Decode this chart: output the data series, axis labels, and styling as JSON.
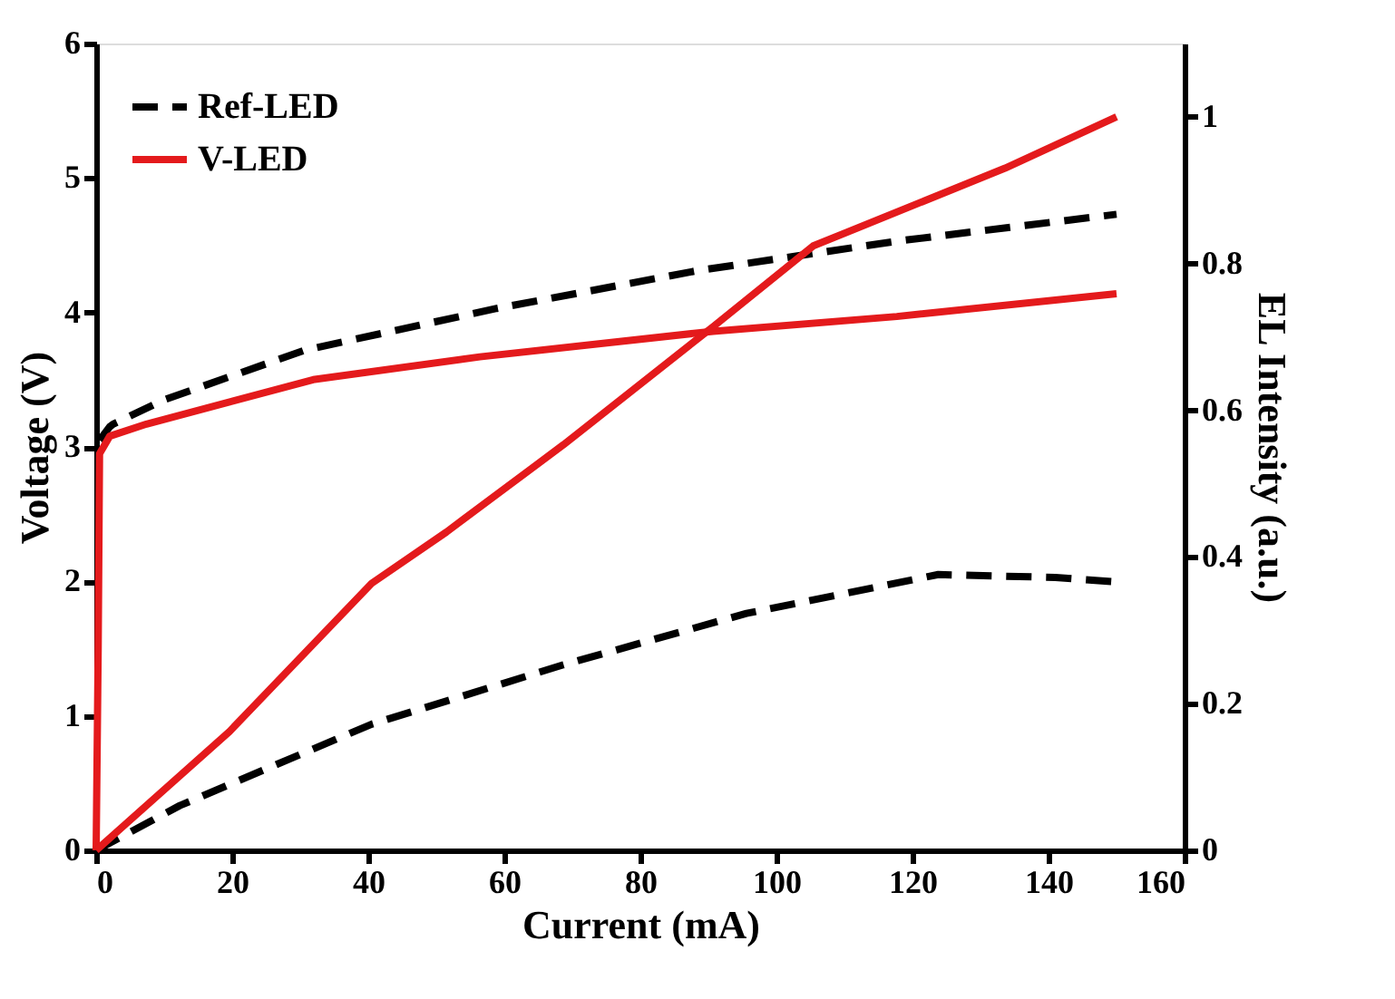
{
  "chart_data": {
    "type": "line",
    "xlabel": "Current (mA)",
    "ylabel": "Voltage (V)",
    "y2label": "EL Intensity (a.u.)",
    "xlim": [
      0,
      160
    ],
    "xticks": [
      0,
      20,
      40,
      60,
      80,
      100,
      120,
      140,
      160
    ],
    "ylim": [
      0,
      6
    ],
    "yticks": [
      0,
      1,
      2,
      3,
      4,
      5,
      6
    ],
    "y2lim": [
      0,
      1.1
    ],
    "y2ticks": [
      0,
      0.2,
      0.4,
      0.6,
      0.8,
      1
    ],
    "grid": false,
    "legend": "top left",
    "marker": "none",
    "series": [
      {
        "name": "Ref-LED",
        "color": "#000000",
        "line_style": "dashed",
        "x": [
          0.5,
          2,
          2.5,
          10,
          30.7,
          58.9,
          88.3,
          117.7,
          148.4,
          150
        ],
        "values": [
          3.05,
          3.15,
          3.17,
          3.35,
          3.72,
          4.03,
          4.31,
          4.53,
          4.72,
          4.73
        ]
      },
      {
        "name": "V-LED",
        "color": "#e41a1c",
        "line_style": "solid",
        "x": [
          0,
          0.3,
          0.5,
          2,
          7.4,
          31.9,
          56.4,
          90.7,
          117.7,
          150
        ],
        "values": [
          0,
          1.5,
          2.95,
          3.08,
          3.17,
          3.5,
          3.67,
          3.86,
          3.97,
          4.14
        ]
      },
      {
        "color": "#000000",
        "line_style": "dashed",
        "axis": "y2",
        "x": [
          0,
          12.3,
          40.5,
          68.7,
          95.6,
          123.8,
          141,
          150
        ],
        "values": [
          0,
          0.061,
          0.172,
          0.253,
          0.323,
          0.376,
          0.372,
          0.366
        ]
      },
      {
        "color": "#e41a1c",
        "line_style": "solid",
        "axis": "y2",
        "x": [
          0,
          19.6,
          40.5,
          51.5,
          68.7,
          90.7,
          105.4,
          133.6,
          150
        ],
        "values": [
          0,
          0.162,
          0.364,
          0.434,
          0.553,
          0.714,
          0.824,
          0.93,
          1.0
        ]
      }
    ]
  }
}
